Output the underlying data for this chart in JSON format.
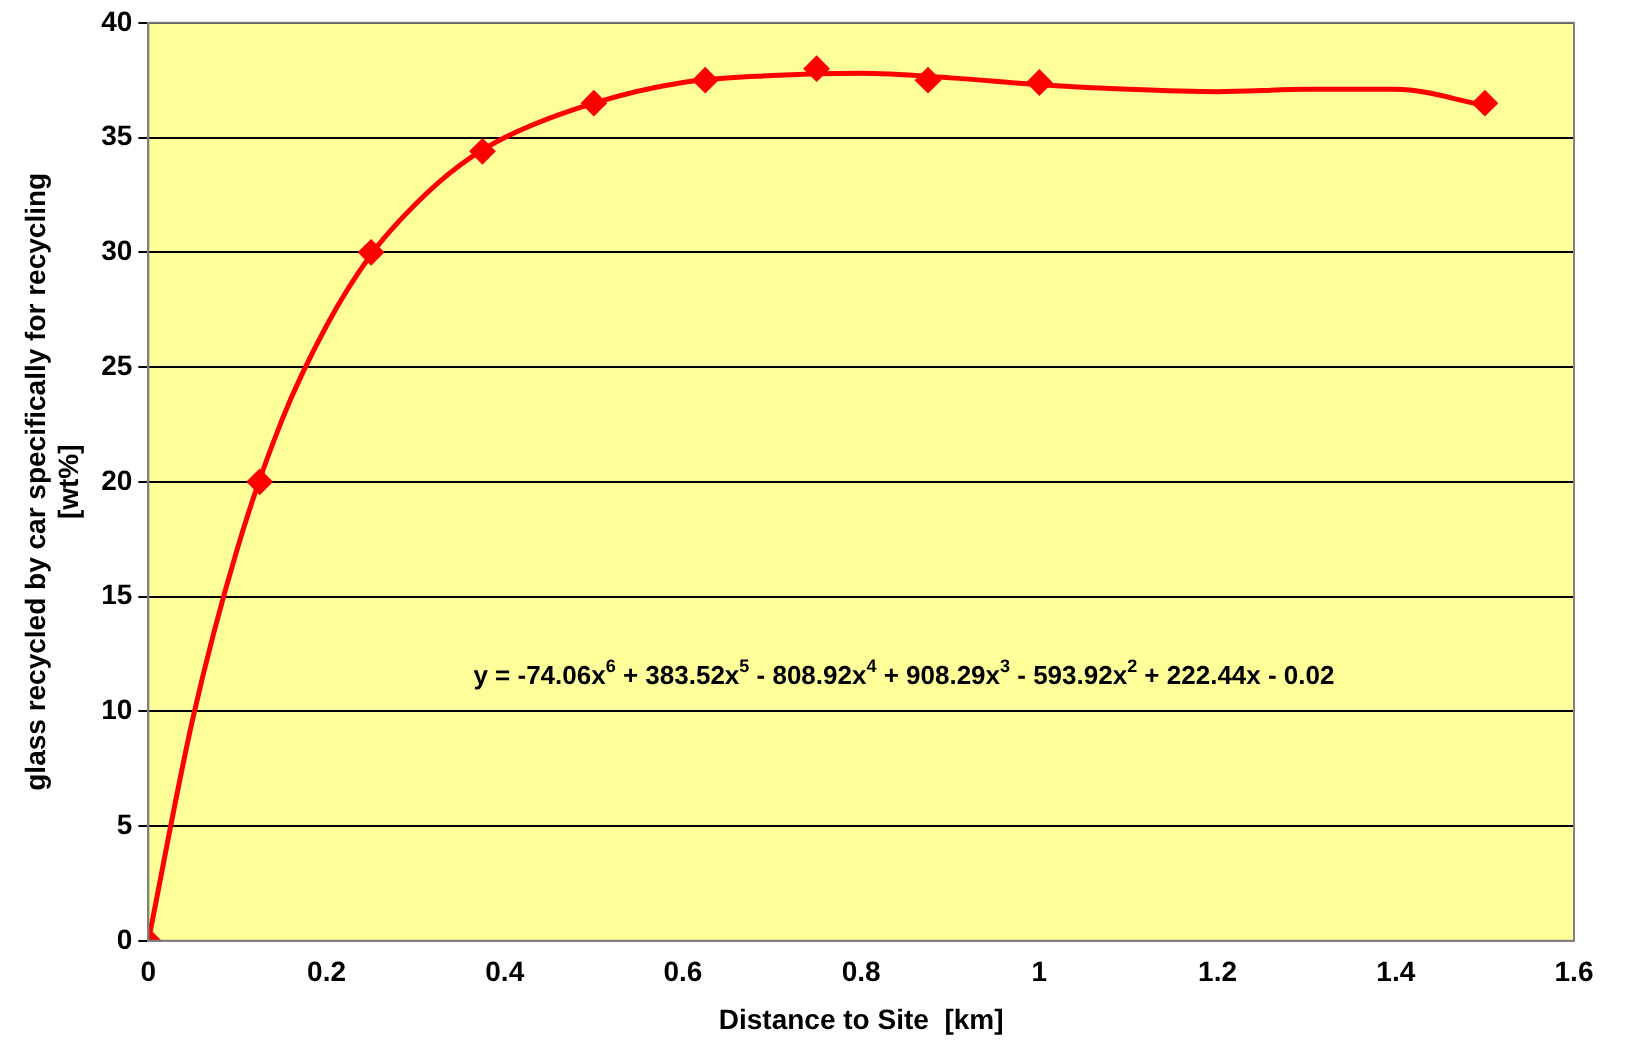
{
  "chart_data": {
    "type": "scatter",
    "xlabel": "Distance to Site  [km]",
    "ylabel": "glass recycled by car specifically for recycling\n[wt%]",
    "xlim": [
      0,
      1.6
    ],
    "xticks": [
      0,
      0.2,
      0.4,
      0.6,
      0.8,
      1,
      1.2,
      1.4,
      1.6
    ],
    "ylim": [
      0,
      40
    ],
    "yticks": [
      0,
      5,
      10,
      15,
      20,
      25,
      30,
      35,
      40
    ],
    "grid": "y",
    "marker": "diamond",
    "annotations": [
      "y = -74.06x$^{6}$ + 383.52x$^{5}$ - 808.92x$^{4}$ + 908.29x$^{3}$ - 593.92x$^{2}$ + 222.44x - 0.02"
    ],
    "series": [
      {
        "type": "line",
        "marker": "none",
        "color": "#ff0000",
        "x": [
          0,
          0.05,
          0.1,
          0.15,
          0.2,
          0.25,
          0.3,
          0.35,
          0.4,
          0.5,
          0.6,
          0.7,
          0.8,
          0.9,
          1.0,
          1.1,
          1.2,
          1.3,
          1.4,
          1.5
        ],
        "values": [
          0,
          9.7,
          17.1,
          22.7,
          26.8,
          29.9,
          32.1,
          33.8,
          35.0,
          36.5,
          37.4,
          37.7,
          37.8,
          37.6,
          37.3,
          37.1,
          37.0,
          37.1,
          37.1,
          36.4
        ]
      },
      {
        "type": "scatter",
        "color": "#ff0000",
        "x": [
          0,
          0.125,
          0.25,
          0.375,
          0.5,
          0.625,
          0.75,
          0.875,
          1.0,
          1.5
        ],
        "values": [
          0,
          20,
          30,
          34.4,
          36.5,
          37.5,
          38,
          37.5,
          37.4,
          36.5
        ]
      }
    ]
  }
}
